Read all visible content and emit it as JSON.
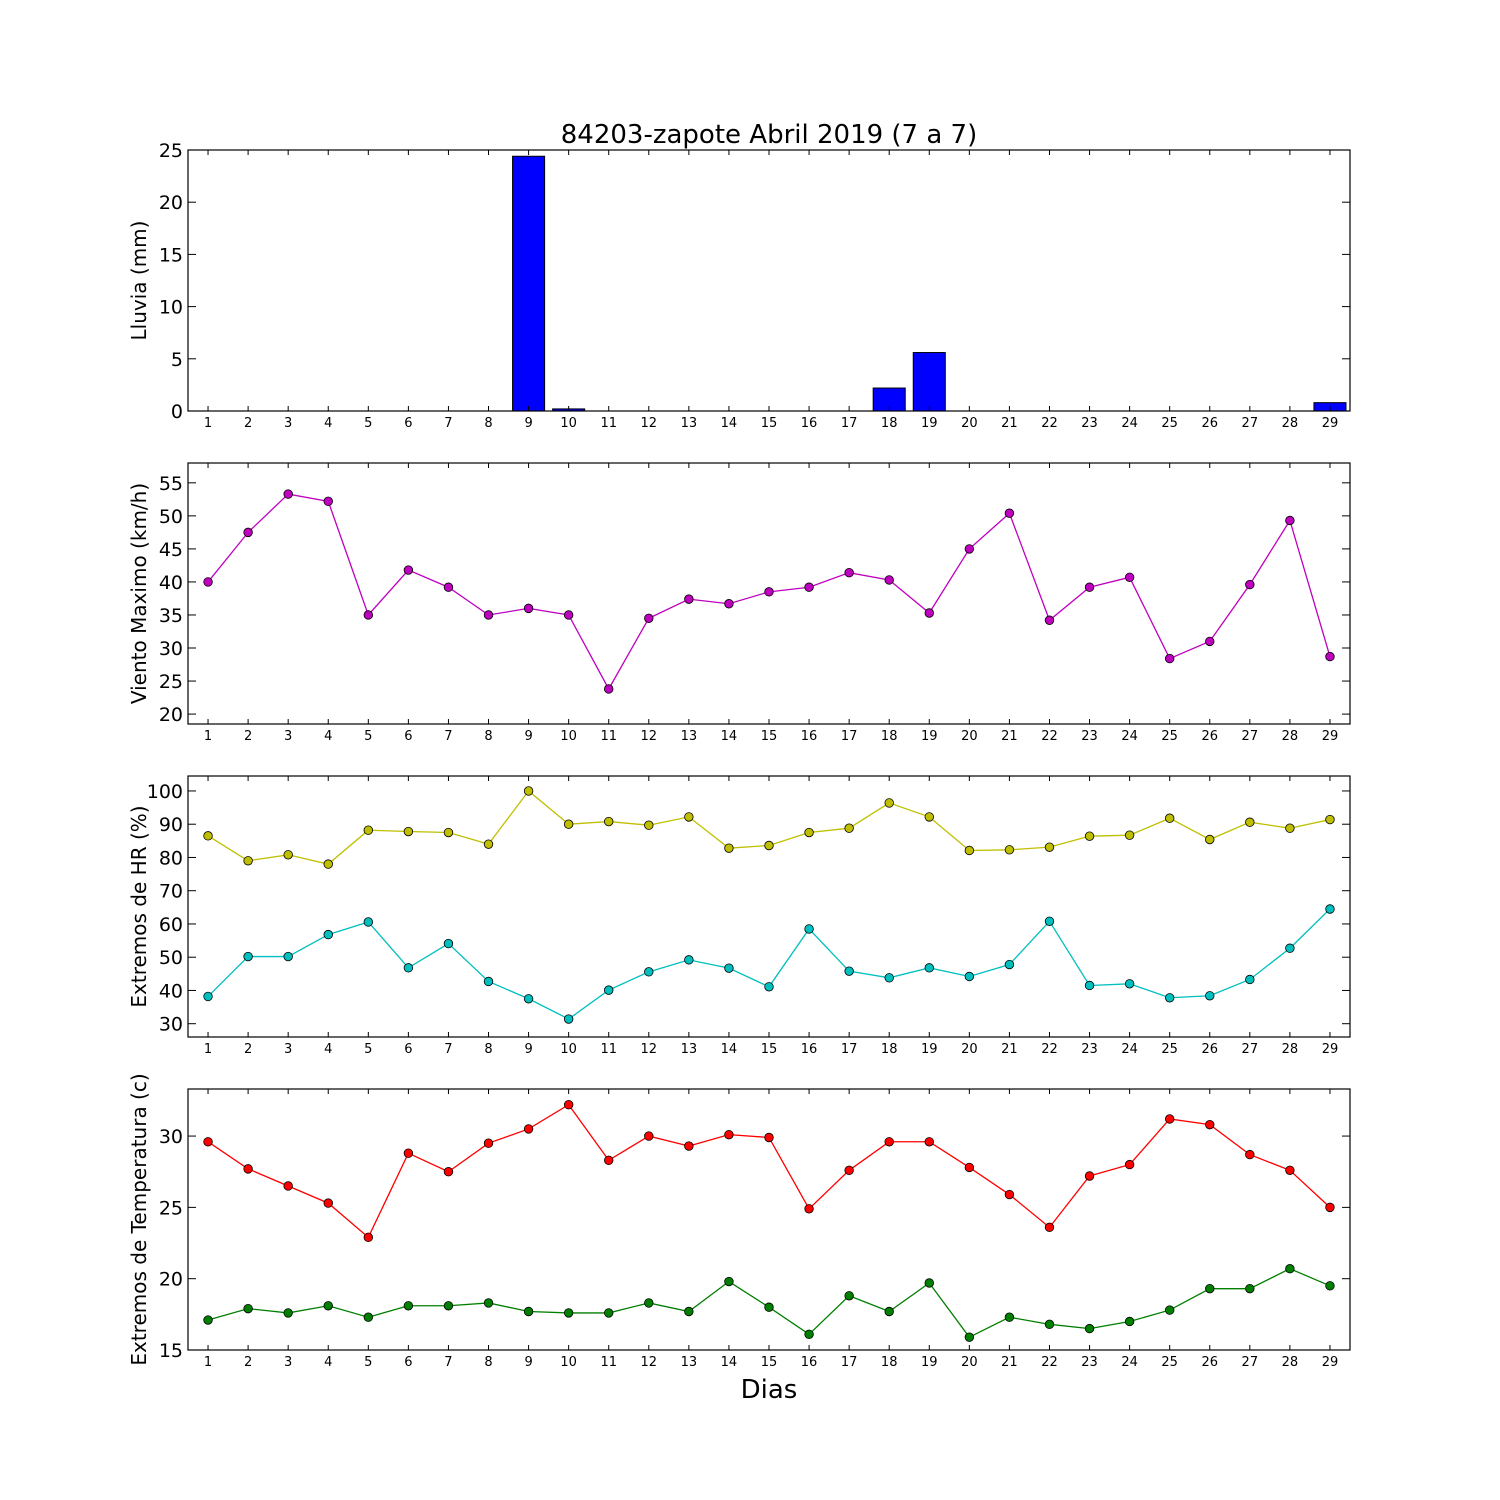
{
  "figure": {
    "title": "84203-zapote Abril 2019  (7 a 7)",
    "xlabel": "Dias"
  },
  "chart_data": [
    {
      "type": "bar",
      "ylabel": "Lluvia (mm)",
      "x": [
        1,
        2,
        3,
        4,
        5,
        6,
        7,
        8,
        9,
        10,
        11,
        12,
        13,
        14,
        15,
        16,
        17,
        18,
        19,
        20,
        21,
        22,
        23,
        24,
        25,
        26,
        27,
        28,
        29
      ],
      "xlim": [
        0.5,
        29.5
      ],
      "ylim": [
        0,
        25
      ],
      "yticks": [
        0,
        5,
        10,
        15,
        20,
        25
      ],
      "grid": false,
      "series": [
        {
          "color": "#0000ff",
          "values": [
            0,
            0,
            0,
            0,
            0,
            0,
            0,
            0,
            24.4,
            0.2,
            0,
            0,
            0,
            0,
            0,
            0,
            0,
            2.2,
            5.6,
            0,
            0,
            0,
            0,
            0,
            0,
            0,
            0,
            0,
            0.8
          ]
        }
      ]
    },
    {
      "type": "line",
      "ylabel": "Viento Maximo (km/h)",
      "x": [
        1,
        2,
        3,
        4,
        5,
        6,
        7,
        8,
        9,
        10,
        11,
        12,
        13,
        14,
        15,
        16,
        17,
        18,
        19,
        20,
        21,
        22,
        23,
        24,
        25,
        26,
        27,
        28,
        29
      ],
      "xlim": [
        0.5,
        29.5
      ],
      "ylim": [
        18.5,
        58
      ],
      "yticks": [
        20,
        25,
        30,
        35,
        40,
        45,
        50,
        55
      ],
      "grid": false,
      "series": [
        {
          "color": "#bf00bf",
          "values": [
            40.0,
            47.5,
            53.3,
            52.2,
            35.0,
            41.8,
            39.2,
            35.0,
            36.0,
            35.0,
            23.8,
            34.5,
            37.4,
            36.7,
            38.5,
            39.2,
            41.4,
            40.3,
            35.3,
            45.0,
            50.4,
            34.2,
            39.2,
            40.7,
            28.4,
            31.0,
            39.6,
            49.3,
            28.7
          ]
        }
      ]
    },
    {
      "type": "line",
      "ylabel": "Extremos de HR (%)",
      "x": [
        1,
        2,
        3,
        4,
        5,
        6,
        7,
        8,
        9,
        10,
        11,
        12,
        13,
        14,
        15,
        16,
        17,
        18,
        19,
        20,
        21,
        22,
        23,
        24,
        25,
        26,
        27,
        28,
        29
      ],
      "xlim": [
        0.5,
        29.5
      ],
      "ylim": [
        26,
        104.5
      ],
      "yticks": [
        30,
        40,
        50,
        60,
        70,
        80,
        90,
        100
      ],
      "grid": false,
      "series": [
        {
          "color": "#bfbf00",
          "values": [
            86.5,
            79.0,
            80.8,
            78.0,
            88.2,
            87.8,
            87.5,
            84.0,
            100,
            90.0,
            90.8,
            89.7,
            92.2,
            82.8,
            83.6,
            87.5,
            88.8,
            96.4,
            92.2,
            82.1,
            82.3,
            83.1,
            86.4,
            86.7,
            91.8,
            85.4,
            90.6,
            88.8,
            91.4
          ]
        },
        {
          "color": "#00bfbf",
          "values": [
            38.2,
            50.2,
            50.2,
            56.8,
            60.6,
            46.8,
            54.1,
            42.7,
            37.5,
            31.4,
            40.1,
            45.6,
            49.2,
            46.7,
            41.1,
            58.5,
            45.8,
            43.8,
            46.8,
            44.2,
            47.8,
            60.8,
            41.5,
            42.0,
            37.8,
            38.4,
            43.3,
            52.7,
            64.5
          ]
        }
      ]
    },
    {
      "type": "line",
      "ylabel": "Extremos de Temperatura (c)",
      "x": [
        1,
        2,
        3,
        4,
        5,
        6,
        7,
        8,
        9,
        10,
        11,
        12,
        13,
        14,
        15,
        16,
        17,
        18,
        19,
        20,
        21,
        22,
        23,
        24,
        25,
        26,
        27,
        28,
        29
      ],
      "xlim": [
        0.5,
        29.5
      ],
      "ylim": [
        15,
        33.3
      ],
      "yticks": [
        15,
        20,
        25,
        30
      ],
      "grid": false,
      "series": [
        {
          "color": "#ff0000",
          "values": [
            29.6,
            27.7,
            26.5,
            25.3,
            22.9,
            28.8,
            27.5,
            29.5,
            30.5,
            32.2,
            28.3,
            30.0,
            29.3,
            30.1,
            29.9,
            24.9,
            27.6,
            29.6,
            29.6,
            27.8,
            25.9,
            23.6,
            27.2,
            28.0,
            31.2,
            30.8,
            28.7,
            27.6,
            25.0
          ]
        },
        {
          "color": "#007f00",
          "values": [
            17.1,
            17.9,
            17.6,
            18.1,
            17.3,
            18.1,
            18.1,
            18.3,
            17.7,
            17.6,
            17.6,
            18.3,
            17.7,
            19.8,
            18.0,
            16.1,
            18.8,
            17.7,
            19.7,
            15.9,
            17.3,
            16.8,
            16.5,
            17.0,
            17.8,
            19.3,
            19.3,
            20.7,
            19.5
          ]
        }
      ]
    }
  ]
}
